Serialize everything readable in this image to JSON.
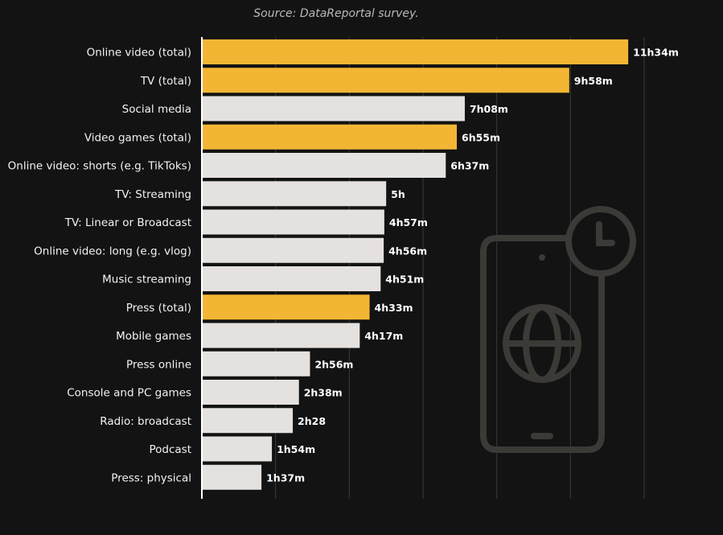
{
  "source": "Source: DataReportal survey.",
  "chart_data": {
    "type": "bar",
    "orientation": "horizontal",
    "categories": [
      "Online video (total)",
      "TV (total)",
      "Social media",
      "Video games (total)",
      "Online video: shorts (e.g. TikToks)",
      "TV: Streaming",
      "TV: Linear or Broadcast",
      "Online video: long (e.g. vlog)",
      "Music streaming",
      "Press (total)",
      "Mobile games",
      "Press online",
      "Console and PC games",
      "Radio: broadcast",
      "Podcast",
      "Press: physical"
    ],
    "values": [
      694,
      598,
      428,
      415,
      397,
      300,
      297,
      296,
      291,
      273,
      257,
      176,
      158,
      148,
      114,
      97
    ],
    "value_unit": "minutes",
    "value_labels": [
      "11h34m",
      "9h58m",
      "7h08m",
      "6h55m",
      "6h37m",
      "5h",
      "4h57m",
      "4h56m",
      "4h51m",
      "4h33m",
      "4h17m",
      "2h56m",
      "2h38m",
      "2h28",
      "1h54m",
      "1h37m"
    ],
    "highlighted": [
      true,
      true,
      false,
      true,
      false,
      false,
      false,
      false,
      false,
      true,
      false,
      false,
      false,
      false,
      false,
      false
    ],
    "xlim": [
      0,
      720
    ],
    "x_gridlines": [
      120,
      240,
      360,
      480,
      600,
      720
    ],
    "grid": true,
    "legend": "none",
    "colors": {
      "background": "#131313",
      "highlight": "#f3b634",
      "default": "#e5e1df",
      "grid": "#3a3a3a",
      "axis": "#ffffff",
      "icon": "#3b3a37"
    }
  },
  "decoration": {
    "icon": "phone-globe-clock-icon"
  }
}
